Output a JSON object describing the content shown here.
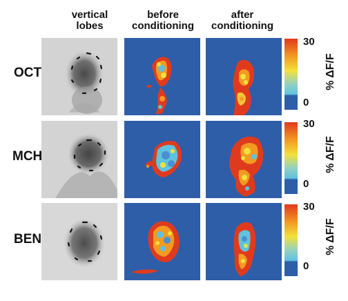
{
  "columns": {
    "col1": {
      "line1": "vertical",
      "line2": "lobes"
    },
    "col2": {
      "line1": "before",
      "line2": "conditioning"
    },
    "col3": {
      "line1": "after",
      "line2": "conditioning"
    }
  },
  "rows": [
    {
      "label": "OCT"
    },
    {
      "label": "MCH"
    },
    {
      "label": "BEN"
    }
  ],
  "colorbar": {
    "max": "30",
    "min": "0",
    "unit": "% ΔF/F"
  },
  "colors": {
    "background_blue": "#2e5ea8",
    "hot_red": "#e03a1e",
    "orange": "#f39a22",
    "yellow": "#f2e13c",
    "cyan": "#5fc3dd",
    "light_blue": "#4b8fd1",
    "gray_dark": "#4a4a4a",
    "gray_light": "#d8d8d8"
  }
}
